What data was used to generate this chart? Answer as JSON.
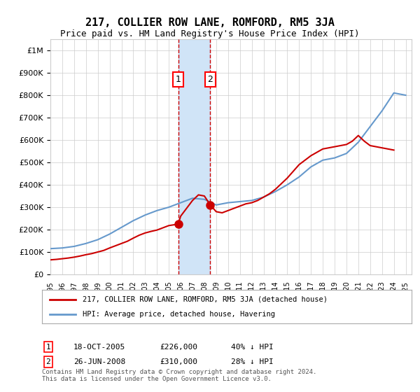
{
  "title": "217, COLLIER ROW LANE, ROMFORD, RM5 3JA",
  "subtitle": "Price paid vs. HM Land Registry's House Price Index (HPI)",
  "legend_label_red": "217, COLLIER ROW LANE, ROMFORD, RM5 3JA (detached house)",
  "legend_label_blue": "HPI: Average price, detached house, Havering",
  "footnote": "Contains HM Land Registry data © Crown copyright and database right 2024.\nThis data is licensed under the Open Government Licence v3.0.",
  "sale1_label": "1",
  "sale1_date": "18-OCT-2005",
  "sale1_price": "£226,000",
  "sale1_hpi": "40% ↓ HPI",
  "sale1_year": 2005.8,
  "sale1_value": 226000,
  "sale2_label": "2",
  "sale2_date": "26-JUN-2008",
  "sale2_price": "£310,000",
  "sale2_hpi": "28% ↓ HPI",
  "sale2_year": 2008.5,
  "sale2_value": 310000,
  "shade_color": "#d0e4f7",
  "line_red_color": "#cc0000",
  "line_blue_color": "#6699cc",
  "marker_color": "#cc0000",
  "ylim": [
    0,
    1050000
  ],
  "xlim_start": 1995,
  "xlim_end": 2025.5,
  "background_color": "#ffffff",
  "grid_color": "#cccccc",
  "hpi_years": [
    1995,
    1996,
    1997,
    1998,
    1999,
    2000,
    2001,
    2002,
    2003,
    2004,
    2005,
    2006,
    2007,
    2008,
    2009,
    2010,
    2011,
    2012,
    2013,
    2014,
    2015,
    2016,
    2017,
    2018,
    2019,
    2020,
    2021,
    2022,
    2023,
    2024,
    2025
  ],
  "hpi_values": [
    115000,
    118000,
    125000,
    138000,
    155000,
    180000,
    210000,
    240000,
    265000,
    285000,
    300000,
    320000,
    340000,
    335000,
    310000,
    320000,
    325000,
    330000,
    345000,
    370000,
    400000,
    435000,
    480000,
    510000,
    520000,
    540000,
    590000,
    660000,
    730000,
    810000,
    800000
  ],
  "price_paid_years": [
    1995.0,
    1995.5,
    1996.0,
    1996.5,
    1997.0,
    1997.5,
    1998.0,
    1998.5,
    1999.0,
    1999.5,
    2000.0,
    2000.5,
    2001.0,
    2001.5,
    2002.0,
    2002.5,
    2003.0,
    2003.5,
    2004.0,
    2004.5,
    2005.0,
    2005.5,
    2005.8,
    2006.0,
    2006.5,
    2007.0,
    2007.5,
    2008.0,
    2008.5,
    2009.0,
    2009.5,
    2010.0,
    2010.5,
    2011.0,
    2011.5,
    2012.0,
    2012.5,
    2013.0,
    2013.5,
    2014.0,
    2014.5,
    2015.0,
    2015.5,
    2016.0,
    2016.5,
    2017.0,
    2017.5,
    2018.0,
    2018.5,
    2019.0,
    2019.5,
    2020.0,
    2020.5,
    2021.0,
    2021.5,
    2022.0,
    2022.5,
    2023.0,
    2023.5,
    2024.0
  ],
  "price_paid_values": [
    65000,
    67000,
    70000,
    73000,
    77000,
    82000,
    88000,
    93000,
    100000,
    107000,
    118000,
    128000,
    138000,
    148000,
    162000,
    175000,
    185000,
    192000,
    198000,
    208000,
    218000,
    222000,
    226000,
    260000,
    295000,
    330000,
    355000,
    350000,
    310000,
    280000,
    275000,
    285000,
    295000,
    305000,
    315000,
    320000,
    330000,
    345000,
    360000,
    380000,
    405000,
    430000,
    460000,
    490000,
    510000,
    530000,
    545000,
    560000,
    565000,
    570000,
    575000,
    580000,
    595000,
    620000,
    595000,
    575000,
    570000,
    565000,
    560000,
    555000
  ]
}
